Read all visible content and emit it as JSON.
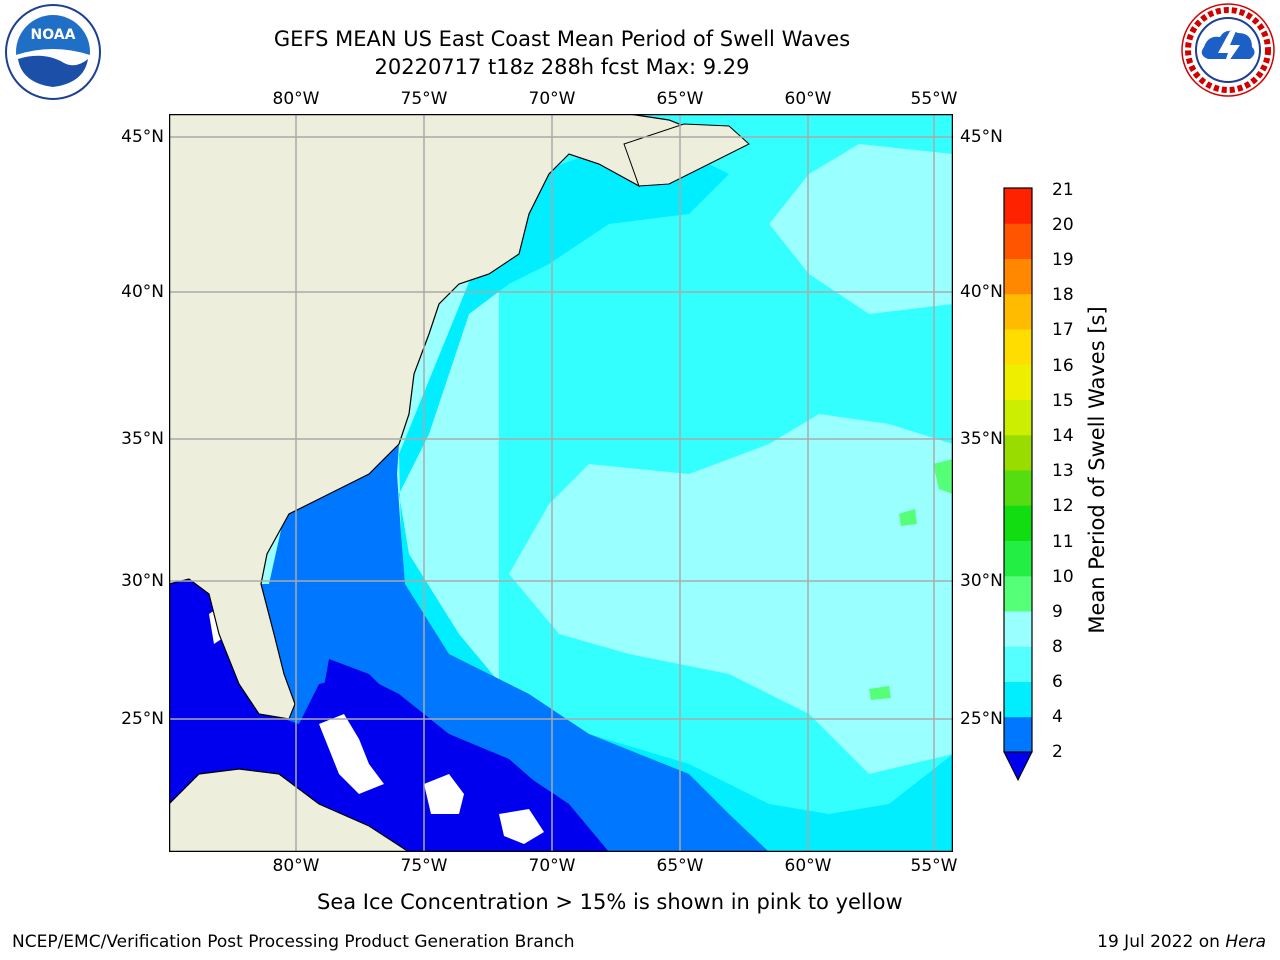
{
  "header": {
    "title_line1": "GEFS MEAN US East Coast Mean Period of Swell Waves",
    "title_line2": "20220717 t18z 288h fcst    Max: 9.29"
  },
  "logos": {
    "left": "noaa-logo",
    "right": "national-weather-service-logo"
  },
  "map": {
    "lon_ticks": [
      "80°W",
      "75°W",
      "70°W",
      "65°W",
      "60°W",
      "55°W"
    ],
    "lat_ticks": [
      "45°N",
      "40°N",
      "35°N",
      "30°N",
      "25°N"
    ],
    "lon_range": [
      -85,
      -54.3
    ],
    "lat_range": [
      20.5,
      46
    ],
    "colors": {
      "land": "#eeeedd",
      "ocean_light": "#99ffff",
      "ocean_cyan": "#33ffff",
      "ocean_bright": "#00eeff",
      "ocean_blue": "#0077ff",
      "ocean_deep": "#0000ee",
      "mask": "#ffffff",
      "green_patch": "#55ff77",
      "grid": "#aaaaaa"
    }
  },
  "colorbar": {
    "title": "Mean Period of Swell Waves [s]",
    "labels": [
      "2",
      "4",
      "6",
      "8",
      "9",
      "10",
      "11",
      "12",
      "13",
      "14",
      "15",
      "16",
      "17",
      "18",
      "19",
      "20",
      "21"
    ],
    "levels": [
      2,
      4,
      6,
      8,
      9,
      10,
      11,
      12,
      13,
      14,
      15,
      16,
      17,
      18,
      19,
      20,
      21
    ],
    "colors": [
      "#0077ff",
      "#00eeff",
      "#55ffff",
      "#99ffff",
      "#55ff77",
      "#22ee44",
      "#11dd11",
      "#55dd11",
      "#99dd00",
      "#ccee00",
      "#eeee00",
      "#ffdd00",
      "#ffbb00",
      "#ff8800",
      "#ff5500",
      "#ff2200"
    ],
    "extend_color": "#0000ee"
  },
  "footnote": "Sea Ice Concentration > 15% is shown in pink to yellow",
  "footer": {
    "left": "NCEP/EMC/Verification Post Processing Product Generation Branch",
    "right_prefix": "19 Jul 2022 on ",
    "right_host": "Hera"
  }
}
